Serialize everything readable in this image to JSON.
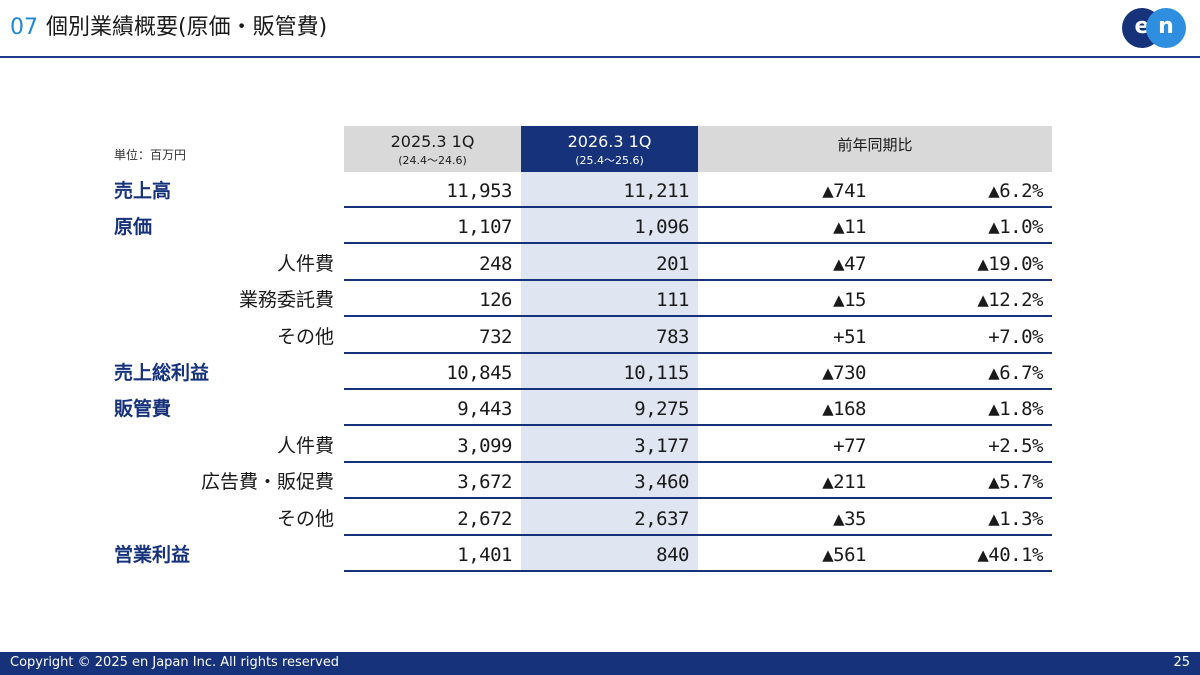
{
  "header": {
    "section_number": "07",
    "title": "個別業績概要(原価・販管費)",
    "logo_text": [
      "e",
      "n"
    ]
  },
  "unit_label": "単位：百万円",
  "columns": [
    {
      "main": "2025.3 1Q",
      "sub": "(24.4～24.6)"
    },
    {
      "main": "2026.3 1Q",
      "sub": "(25.4～25.6)"
    },
    {
      "main": "前年同期比",
      "sub": ""
    }
  ],
  "rows": [
    {
      "label": "売上高",
      "type": "main",
      "values": [
        "11,953",
        "11,211",
        "▲741",
        "▲6.2%"
      ]
    },
    {
      "label": "原価",
      "type": "main",
      "values": [
        "1,107",
        "1,096",
        "▲11",
        "▲1.0%"
      ]
    },
    {
      "label": "人件費",
      "type": "sub",
      "values": [
        "248",
        "201",
        "▲47",
        "▲19.0%"
      ]
    },
    {
      "label": "業務委託費",
      "type": "sub",
      "values": [
        "126",
        "111",
        "▲15",
        "▲12.2%"
      ]
    },
    {
      "label": "その他",
      "type": "sub",
      "values": [
        "732",
        "783",
        "+51",
        "+7.0%"
      ]
    },
    {
      "label": "売上総利益",
      "type": "main",
      "values": [
        "10,845",
        "10,115",
        "▲730",
        "▲6.7%"
      ]
    },
    {
      "label": "販管費",
      "type": "main",
      "values": [
        "9,443",
        "9,275",
        "▲168",
        "▲1.8%"
      ]
    },
    {
      "label": "人件費",
      "type": "sub",
      "values": [
        "3,099",
        "3,177",
        "+77",
        "+2.5%"
      ]
    },
    {
      "label": "広告費・販促費",
      "type": "sub",
      "values": [
        "3,672",
        "3,460",
        "▲211",
        "▲5.7%"
      ]
    },
    {
      "label": "その他",
      "type": "sub",
      "values": [
        "2,672",
        "2,637",
        "▲35",
        "▲1.3%"
      ]
    },
    {
      "label": "営業利益",
      "type": "main",
      "values": [
        "1,401",
        "840",
        "▲561",
        "▲40.1%"
      ]
    }
  ],
  "footer": {
    "copyright": "Copyright © 2025 en Japan Inc. All rights reserved",
    "page_number": "25"
  },
  "colors": {
    "navy": "#16327a",
    "accent_blue": "#1e88d2",
    "header_gray": "#d9d9d9",
    "highlight_col": "#dfe6f1"
  }
}
